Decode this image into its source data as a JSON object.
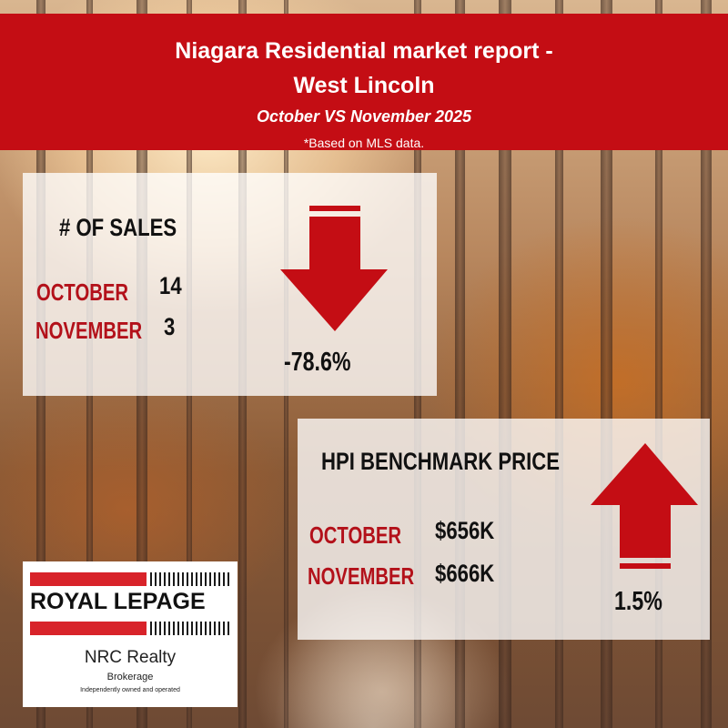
{
  "header": {
    "title_line1": "Niagara Residential market report -",
    "title_line2": "West Lincoln",
    "subtitle": "October VS November 2025",
    "note": "*Based on MLS data."
  },
  "sales": {
    "title": "# OF SALES",
    "october_label": "OCTOBER",
    "october_value": "14",
    "november_label": "NOVEMBER",
    "november_value": "3",
    "change": "-78.6%",
    "direction": "down"
  },
  "hpi": {
    "title": "HPI BENCHMARK PRICE",
    "october_label": "OCTOBER",
    "october_value": "$656K",
    "november_label": "NOVEMBER",
    "november_value": "$666K",
    "change": "1.5%",
    "direction": "up"
  },
  "logo": {
    "brand": "ROYAL LEPAGE",
    "name": "NRC Realty",
    "sub": "Brokerage",
    "tagline": "Independently owned and operated"
  },
  "colors": {
    "banner": "#c40d14",
    "accent_red": "#b3111a",
    "arrow_red": "#c40d14"
  },
  "icons": {
    "sales_arrow": "arrow-down-icon",
    "hpi_arrow": "arrow-up-icon"
  }
}
